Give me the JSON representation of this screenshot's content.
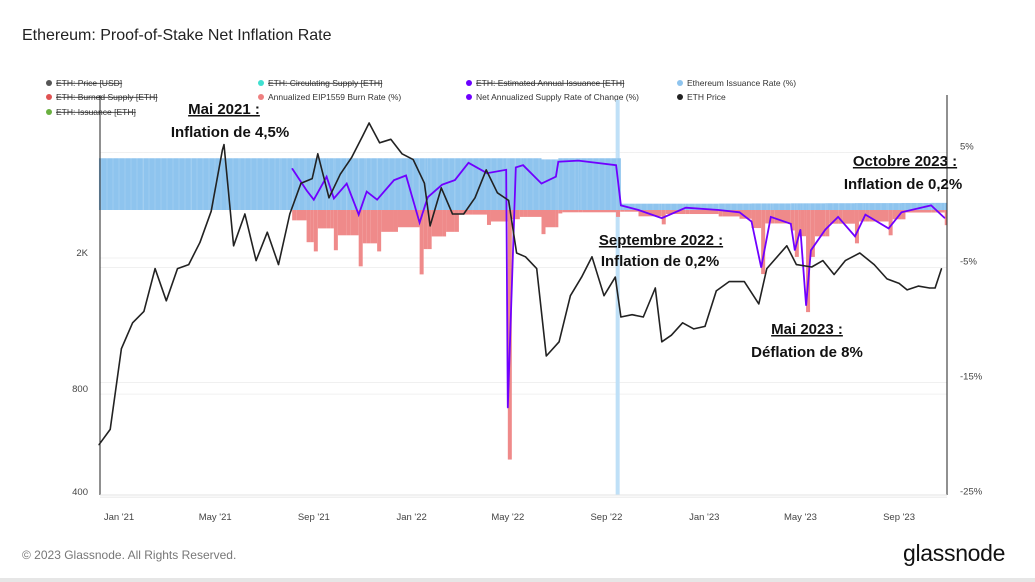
{
  "title": "Ethereum: Proof-of-Stake Net Inflation Rate",
  "footer": "© 2023 Glassnode. All Rights Reserved.",
  "logo": "glassnode",
  "legend": [
    {
      "label": "ETH: Price [USD]",
      "color": "#555555",
      "disabled": true
    },
    {
      "label": "ETH: Circulating Supply [ETH]",
      "color": "#3fe0d0",
      "disabled": true
    },
    {
      "label": "ETH: Estimated Annual Issuance [ETH]",
      "color": "#6a00ff",
      "disabled": true
    },
    {
      "label": "Ethereum Issuance Rate (%)",
      "color": "#8ec4ee",
      "disabled": false
    },
    {
      "label": "ETH: Burned Supply [ETH]",
      "color": "#e05252",
      "disabled": true
    },
    {
      "label": "Annualized EIP1559 Burn Rate (%)",
      "color": "#ef8080",
      "disabled": false
    },
    {
      "label": "Net Annualized Supply Rate of Change (%)",
      "color": "#7000ff",
      "disabled": false
    },
    {
      "label": "ETH Price",
      "color": "#222222",
      "disabled": false
    },
    {
      "label": "ETH: Issuance [ETH]",
      "color": "#6ab040",
      "disabled": true
    }
  ],
  "annotations": [
    {
      "heading": "Mai 2021 :",
      "text": "Inflation de 4,5%"
    },
    {
      "heading": "Septembre 2022 :",
      "text": "Inflation de 0,2%"
    },
    {
      "heading": "Mai 2023 :",
      "text": "Déflation de 8%"
    },
    {
      "heading": "Octobre 2023 :",
      "text": "Inflation de 0,2%"
    }
  ],
  "chart_data": {
    "type": "line",
    "title": "Ethereum: Proof-of-Stake Net Inflation Rate",
    "x_ticks": [
      "Jan '21",
      "May '21",
      "Sep '21",
      "Jan '22",
      "May '22",
      "Sep '22",
      "Jan '23",
      "May '23",
      "Sep '23"
    ],
    "x_tick_dates": [
      "2021-01-01",
      "2021-05-01",
      "2021-09-01",
      "2022-01-01",
      "2022-05-01",
      "2022-09-01",
      "2023-01-01",
      "2023-05-01",
      "2023-09-01"
    ],
    "left_axis": {
      "scale": "log",
      "ticks": [
        "400",
        "800",
        "2K"
      ],
      "tick_values": [
        400,
        800,
        2000
      ]
    },
    "right_axis": {
      "scale": "linear",
      "ticks": [
        "5%",
        "-5%",
        "-15%",
        "-25%"
      ],
      "tick_values": [
        5,
        -5,
        -15,
        -25
      ],
      "range": [
        -25,
        10
      ]
    },
    "grid": true,
    "legend_position": "top",
    "merge_marker_date": "2022-09-15",
    "eth_price": [
      [
        "2020-12-07",
        550
      ],
      [
        "2020-12-21",
        610
      ],
      [
        "2021-01-04",
        1050
      ],
      [
        "2021-01-18",
        1250
      ],
      [
        "2021-02-01",
        1350
      ],
      [
        "2021-02-15",
        1800
      ],
      [
        "2021-03-01",
        1450
      ],
      [
        "2021-03-15",
        1800
      ],
      [
        "2021-03-29",
        1850
      ],
      [
        "2021-04-12",
        2150
      ],
      [
        "2021-04-26",
        2650
      ],
      [
        "2021-05-10",
        4000
      ],
      [
        "2021-05-12",
        4150
      ],
      [
        "2021-05-24",
        2100
      ],
      [
        "2021-06-07",
        2600
      ],
      [
        "2021-06-21",
        1900
      ],
      [
        "2021-07-05",
        2300
      ],
      [
        "2021-07-19",
        1850
      ],
      [
        "2021-08-02",
        2600
      ],
      [
        "2021-08-16",
        3200
      ],
      [
        "2021-08-30",
        3300
      ],
      [
        "2021-09-06",
        3900
      ],
      [
        "2021-09-20",
        2900
      ],
      [
        "2021-10-04",
        3400
      ],
      [
        "2021-10-18",
        3800
      ],
      [
        "2021-11-01",
        4400
      ],
      [
        "2021-11-09",
        4800
      ],
      [
        "2021-11-22",
        4200
      ],
      [
        "2021-12-06",
        4300
      ],
      [
        "2021-12-20",
        3900
      ],
      [
        "2022-01-03",
        3750
      ],
      [
        "2022-01-17",
        3200
      ],
      [
        "2022-01-24",
        2400
      ],
      [
        "2022-02-07",
        3100
      ],
      [
        "2022-02-21",
        2600
      ],
      [
        "2022-03-07",
        2600
      ],
      [
        "2022-03-21",
        2900
      ],
      [
        "2022-04-04",
        3500
      ],
      [
        "2022-04-18",
        3000
      ],
      [
        "2022-05-02",
        2850
      ],
      [
        "2022-05-12",
        2000
      ],
      [
        "2022-05-23",
        1950
      ],
      [
        "2022-06-06",
        1800
      ],
      [
        "2022-06-18",
        1000
      ],
      [
        "2022-07-04",
        1100
      ],
      [
        "2022-07-18",
        1500
      ],
      [
        "2022-08-01",
        1700
      ],
      [
        "2022-08-14",
        1950
      ],
      [
        "2022-08-29",
        1500
      ],
      [
        "2022-09-12",
        1700
      ],
      [
        "2022-09-19",
        1300
      ],
      [
        "2022-10-03",
        1320
      ],
      [
        "2022-10-17",
        1300
      ],
      [
        "2022-11-01",
        1580
      ],
      [
        "2022-11-09",
        1100
      ],
      [
        "2022-11-21",
        1150
      ],
      [
        "2022-12-05",
        1250
      ],
      [
        "2022-12-19",
        1200
      ],
      [
        "2023-01-02",
        1220
      ],
      [
        "2023-01-16",
        1550
      ],
      [
        "2023-02-01",
        1650
      ],
      [
        "2023-02-20",
        1650
      ],
      [
        "2023-03-10",
        1420
      ],
      [
        "2023-03-20",
        1800
      ],
      [
        "2023-04-14",
        2100
      ],
      [
        "2023-04-26",
        1850
      ],
      [
        "2023-05-15",
        1820
      ],
      [
        "2023-05-29",
        1900
      ],
      [
        "2023-06-12",
        1730
      ],
      [
        "2023-06-26",
        1900
      ],
      [
        "2023-07-14",
        2000
      ],
      [
        "2023-08-01",
        1850
      ],
      [
        "2023-08-17",
        1680
      ],
      [
        "2023-09-01",
        1630
      ],
      [
        "2023-09-11",
        1560
      ],
      [
        "2023-09-25",
        1600
      ],
      [
        "2023-10-09",
        1580
      ],
      [
        "2023-10-16",
        1580
      ],
      [
        "2023-10-24",
        1800
      ]
    ],
    "rates_columns": [
      "date",
      "issuance_rate_pct",
      "burn_rate_pct",
      "net_rate_pct"
    ],
    "rates": [
      [
        "2020-12-07",
        4.5,
        null,
        null
      ],
      [
        "2021-02-01",
        4.5,
        null,
        null
      ],
      [
        "2021-04-01",
        4.5,
        null,
        null
      ],
      [
        "2021-06-01",
        4.5,
        null,
        null
      ],
      [
        "2021-07-20",
        4.5,
        null,
        null
      ],
      [
        "2021-08-05",
        4.5,
        -0.9,
        3.6
      ],
      [
        "2021-08-23",
        4.5,
        -2.8,
        1.7
      ],
      [
        "2021-09-01",
        4.5,
        -3.6,
        0.9
      ],
      [
        "2021-09-17",
        4.5,
        -1.6,
        2.9
      ],
      [
        "2021-09-26",
        4.5,
        -3.5,
        1.0
      ],
      [
        "2021-10-12",
        4.5,
        -2.2,
        2.3
      ],
      [
        "2021-10-27",
        4.5,
        -4.9,
        -0.4
      ],
      [
        "2021-11-06",
        4.5,
        -2.9,
        1.6
      ],
      [
        "2021-11-19",
        4.5,
        -3.6,
        0.9
      ],
      [
        "2021-12-10",
        4.5,
        -1.9,
        2.6
      ],
      [
        "2021-12-25",
        4.5,
        -1.5,
        3.0
      ],
      [
        "2022-01-11",
        4.5,
        -5.6,
        -1.1
      ],
      [
        "2022-01-21",
        4.5,
        -3.4,
        1.1
      ],
      [
        "2022-02-08",
        4.5,
        -2.3,
        2.2
      ],
      [
        "2022-02-24",
        4.5,
        -1.9,
        2.6
      ],
      [
        "2022-03-13",
        4.5,
        -0.4,
        4.1
      ],
      [
        "2022-04-05",
        4.5,
        -1.3,
        3.2
      ],
      [
        "2022-04-29",
        4.5,
        -1.0,
        3.5
      ],
      [
        "2022-05-01",
        4.5,
        -21.7,
        -17.2
      ],
      [
        "2022-05-11",
        4.5,
        -0.8,
        3.7
      ],
      [
        "2022-05-20",
        4.5,
        -0.6,
        3.9
      ],
      [
        "2022-06-12",
        4.4,
        -2.1,
        2.3
      ],
      [
        "2022-06-30",
        4.4,
        -1.5,
        2.9
      ],
      [
        "2022-07-03",
        4.5,
        -0.3,
        4.2
      ],
      [
        "2022-07-28",
        4.5,
        -0.2,
        4.3
      ],
      [
        "2022-09-13",
        4.5,
        -0.6,
        3.9
      ],
      [
        "2022-09-19",
        0.55,
        -0.15,
        0.4
      ],
      [
        "2022-10-11",
        0.55,
        -0.55,
        0.0
      ],
      [
        "2022-11-09",
        0.55,
        -1.25,
        -0.7
      ],
      [
        "2022-12-09",
        0.55,
        -0.35,
        0.2
      ],
      [
        "2023-01-19",
        0.56,
        -0.56,
        0.0
      ],
      [
        "2023-02-14",
        0.56,
        -0.76,
        -0.2
      ],
      [
        "2023-03-01",
        0.57,
        -1.57,
        -1.0
      ],
      [
        "2023-03-13",
        0.57,
        -5.57,
        -5.0
      ],
      [
        "2023-03-25",
        0.57,
        -1.17,
        -0.6
      ],
      [
        "2023-04-19",
        0.58,
        -1.78,
        -1.2
      ],
      [
        "2023-04-24",
        0.58,
        -4.08,
        -3.5
      ],
      [
        "2023-05-01",
        0.58,
        -2.28,
        -1.7
      ],
      [
        "2023-05-08",
        0.58,
        -8.88,
        -8.3
      ],
      [
        "2023-05-14",
        0.58,
        -4.08,
        -3.5
      ],
      [
        "2023-06-01",
        0.59,
        -2.29,
        -1.7
      ],
      [
        "2023-06-17",
        0.59,
        -1.19,
        -0.6
      ],
      [
        "2023-07-08",
        0.6,
        -2.9,
        -2.3
      ],
      [
        "2023-07-21",
        0.6,
        -1.0,
        -0.4
      ],
      [
        "2023-08-19",
        0.6,
        -2.2,
        -1.6
      ],
      [
        "2023-09-04",
        0.61,
        -0.81,
        -0.2
      ],
      [
        "2023-10-11",
        0.62,
        -0.22,
        0.4
      ],
      [
        "2023-10-28",
        0.62,
        -1.32,
        -0.7
      ]
    ]
  }
}
